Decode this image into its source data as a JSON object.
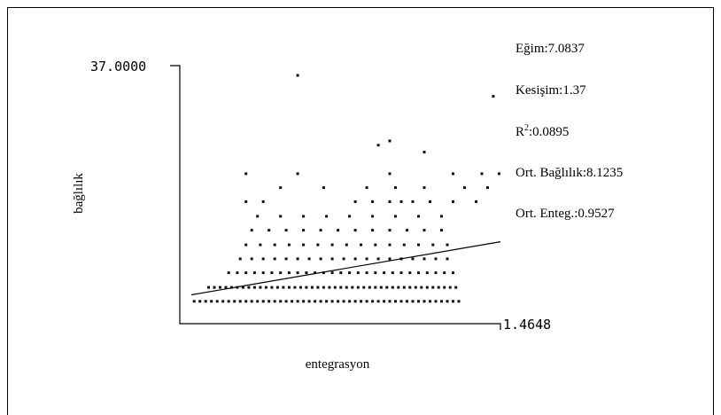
{
  "chart_data": {
    "type": "scatter",
    "title": "",
    "xlabel": "entegrasyon",
    "ylabel": "bağlılık",
    "y_max_label": "37.0000",
    "x_max_label": "1.4648",
    "stats": {
      "egim": "Eğim:7.0837",
      "kesisim": "Kesişim:1.37",
      "r2_prefix": "R",
      "r2_sup": "2",
      "r2_value": ":0.0895",
      "ort_baglilik": "Ort. Bağlılık:8.1235",
      "ort_enteg": "Ort. Enteg.:0.9527"
    },
    "xlim": [
      0.35,
      1.4648
    ],
    "ylim": [
      0,
      37
    ],
    "trendline": {
      "slope": 7.0837,
      "intercept": 1.37,
      "x_start": 0.39,
      "x_end": 1.4648
    },
    "points_x": [
      0.4,
      0.42,
      0.44,
      0.46,
      0.48,
      0.5,
      0.52,
      0.54,
      0.56,
      0.58,
      0.6,
      0.62,
      0.64,
      0.66,
      0.68,
      0.7,
      0.72,
      0.74,
      0.76,
      0.78,
      0.8,
      0.82,
      0.84,
      0.86,
      0.88,
      0.9,
      0.92,
      0.94,
      0.96,
      0.98,
      1.0,
      1.02,
      1.04,
      1.06,
      1.08,
      1.1,
      1.12,
      1.14,
      1.16,
      1.18,
      1.2,
      1.22,
      1.24,
      1.26,
      1.28,
      1.3,
      1.32,
      0.45,
      0.47,
      0.49,
      0.51,
      0.53,
      0.55,
      0.57,
      0.59,
      0.61,
      0.63,
      0.65,
      0.67,
      0.69,
      0.71,
      0.73,
      0.75,
      0.77,
      0.79,
      0.81,
      0.83,
      0.85,
      0.87,
      0.89,
      0.91,
      0.93,
      0.95,
      0.97,
      0.99,
      1.01,
      1.03,
      1.05,
      1.07,
      1.09,
      1.11,
      1.13,
      1.15,
      1.17,
      1.19,
      1.21,
      1.23,
      1.25,
      1.27,
      1.29,
      1.31,
      0.52,
      0.55,
      0.58,
      0.61,
      0.64,
      0.67,
      0.7,
      0.73,
      0.76,
      0.79,
      0.82,
      0.85,
      0.88,
      0.91,
      0.94,
      0.97,
      1.0,
      1.03,
      1.06,
      1.09,
      1.12,
      1.15,
      1.18,
      1.21,
      1.24,
      1.27,
      1.3,
      0.56,
      0.6,
      0.64,
      0.68,
      0.72,
      0.76,
      0.8,
      0.84,
      0.88,
      0.92,
      0.96,
      1.0,
      1.04,
      1.08,
      1.12,
      1.16,
      1.2,
      1.24,
      1.28,
      0.58,
      0.63,
      0.68,
      0.73,
      0.78,
      0.83,
      0.88,
      0.93,
      0.98,
      1.03,
      1.08,
      1.13,
      1.18,
      1.23,
      1.28,
      0.6,
      0.66,
      0.72,
      0.78,
      0.84,
      0.9,
      0.96,
      1.02,
      1.08,
      1.14,
      1.2,
      1.26,
      0.62,
      0.7,
      0.78,
      0.86,
      0.94,
      1.02,
      1.1,
      1.18,
      1.26,
      0.58,
      0.64,
      0.96,
      1.02,
      1.08,
      1.12,
      1.16,
      1.22,
      1.3,
      1.38,
      0.7,
      0.85,
      1.0,
      1.1,
      1.2,
      1.34,
      1.42,
      0.58,
      0.76,
      1.08,
      1.3,
      1.4,
      1.46,
      1.04,
      1.08,
      1.2,
      0.76,
      1.44
    ],
    "points_y": [
      3.2,
      3.2,
      3.2,
      3.2,
      3.2,
      3.2,
      3.2,
      3.2,
      3.2,
      3.2,
      3.2,
      3.2,
      3.2,
      3.2,
      3.2,
      3.2,
      3.2,
      3.2,
      3.2,
      3.2,
      3.2,
      3.2,
      3.2,
      3.2,
      3.2,
      3.2,
      3.2,
      3.2,
      3.2,
      3.2,
      3.2,
      3.2,
      3.2,
      3.2,
      3.2,
      3.2,
      3.2,
      3.2,
      3.2,
      3.2,
      3.2,
      3.2,
      3.2,
      3.2,
      3.2,
      3.2,
      3.2,
      5.2,
      5.2,
      5.2,
      5.2,
      5.2,
      5.2,
      5.2,
      5.2,
      5.2,
      5.2,
      5.2,
      5.2,
      5.2,
      5.2,
      5.2,
      5.2,
      5.2,
      5.2,
      5.2,
      5.2,
      5.2,
      5.2,
      5.2,
      5.2,
      5.2,
      5.2,
      5.2,
      5.2,
      5.2,
      5.2,
      5.2,
      5.2,
      5.2,
      5.2,
      5.2,
      5.2,
      5.2,
      5.2,
      5.2,
      5.2,
      5.2,
      5.2,
      5.2,
      5.2,
      7.3,
      7.3,
      7.3,
      7.3,
      7.3,
      7.3,
      7.3,
      7.3,
      7.3,
      7.3,
      7.3,
      7.3,
      7.3,
      7.3,
      7.3,
      7.3,
      7.3,
      7.3,
      7.3,
      7.3,
      7.3,
      7.3,
      7.3,
      7.3,
      7.3,
      7.3,
      7.3,
      9.3,
      9.3,
      9.3,
      9.3,
      9.3,
      9.3,
      9.3,
      9.3,
      9.3,
      9.3,
      9.3,
      9.3,
      9.3,
      9.3,
      9.3,
      9.3,
      9.3,
      9.3,
      9.3,
      11.3,
      11.3,
      11.3,
      11.3,
      11.3,
      11.3,
      11.3,
      11.3,
      11.3,
      11.3,
      11.3,
      11.3,
      11.3,
      11.3,
      11.3,
      13.4,
      13.4,
      13.4,
      13.4,
      13.4,
      13.4,
      13.4,
      13.4,
      13.4,
      13.4,
      13.4,
      13.4,
      15.4,
      15.4,
      15.4,
      15.4,
      15.4,
      15.4,
      15.4,
      15.4,
      15.4,
      17.5,
      17.5,
      17.5,
      17.5,
      17.5,
      17.5,
      17.5,
      17.5,
      17.5,
      17.5,
      19.5,
      19.5,
      19.5,
      19.5,
      19.5,
      19.5,
      19.5,
      21.5,
      21.5,
      21.5,
      21.5,
      21.5,
      21.5,
      25.6,
      26.2,
      24.6,
      35.6,
      32.6
    ]
  }
}
